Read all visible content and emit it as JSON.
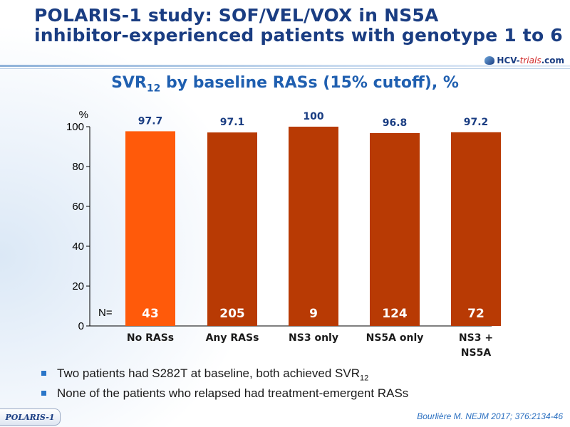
{
  "slide": {
    "title_line1": "POLARIS-1 study: SOF/VEL/VOX in NS5A",
    "title_line2": "inhibitor-experienced patients with genotype 1 to 6",
    "logo_text_prefix": "HCV-",
    "logo_text_emph": "trials",
    "logo_text_suffix": ".com",
    "badge": "POLARIS-1",
    "citation": "Bourlière M. NEJM 2017; 376:2134-46"
  },
  "chart_data": {
    "type": "bar",
    "title_main": "SVR",
    "title_sub": "12",
    "title_rest": " by baseline RASs (15% cutoff), %",
    "ylabel": "%",
    "ylim": [
      0,
      100
    ],
    "yticks": [
      0,
      20,
      40,
      60,
      80,
      100
    ],
    "n_prefix": "N=",
    "categories": [
      [
        "No RASs"
      ],
      [
        "Any RASs"
      ],
      [
        "NS3 only"
      ],
      [
        "NS5A only"
      ],
      [
        "NS3 +",
        "NS5A"
      ]
    ],
    "values": [
      97.7,
      97.1,
      100,
      96.8,
      97.2
    ],
    "value_labels": [
      "97.7",
      "97.1",
      "100",
      "96.8",
      "97.2"
    ],
    "n": [
      "43",
      "205",
      "9",
      "124",
      "72"
    ],
    "colors": [
      "#ff5a0a",
      "#b83a04",
      "#b83a04",
      "#b83a04",
      "#b83a04"
    ]
  },
  "bullets": [
    {
      "text": "Two patients had S282T at baseline, both achieved SVR",
      "sub": "12"
    },
    {
      "text": "None of the patients who relapsed had treatment-emergent RASs",
      "sub": ""
    }
  ]
}
